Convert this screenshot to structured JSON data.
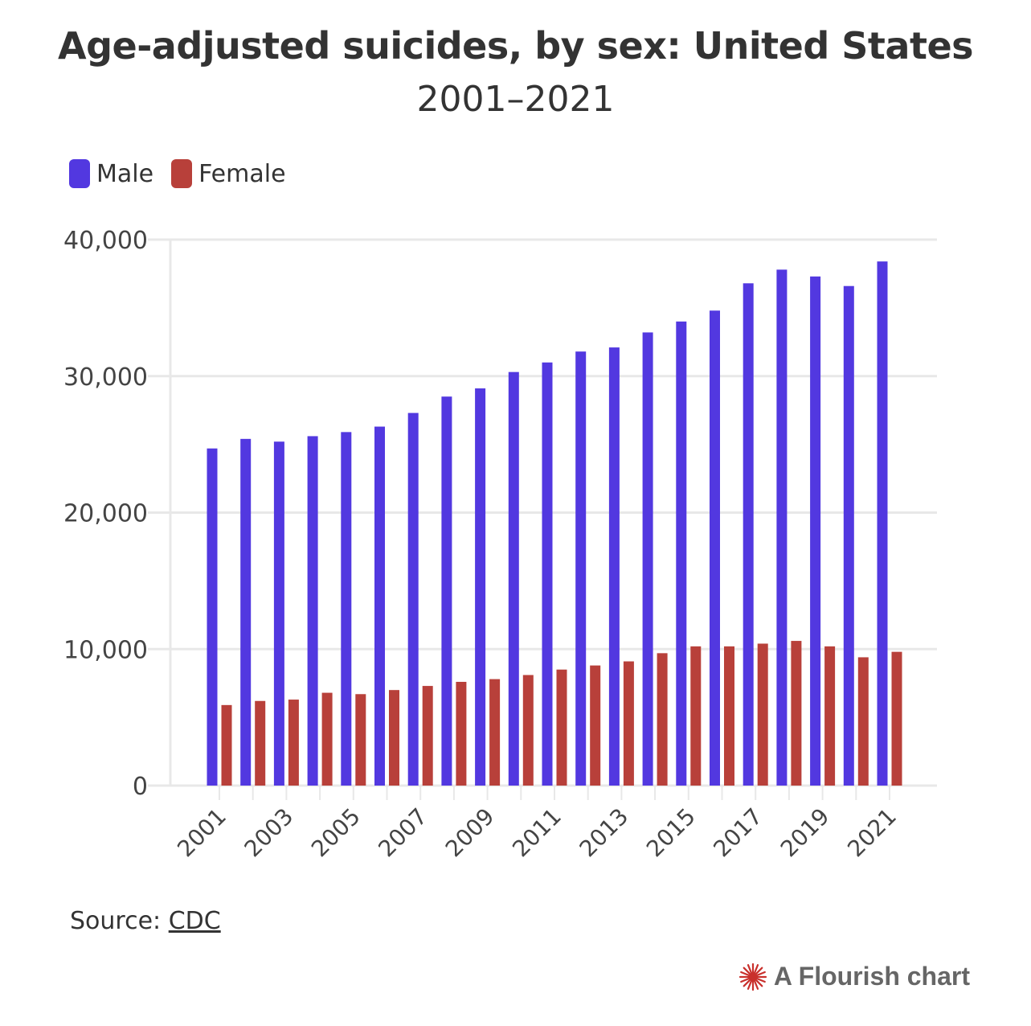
{
  "colors": {
    "male": "#5238e0",
    "female": "#b8403a",
    "grid": "#e8e8e8",
    "text": "#333333"
  },
  "chart_data": {
    "type": "bar",
    "title": "Age-adjusted suicides, by sex: United States",
    "subtitle": "2001–2021",
    "categories": [
      "2001",
      "2002",
      "2003",
      "2004",
      "2005",
      "2006",
      "2007",
      "2008",
      "2009",
      "2010",
      "2011",
      "2012",
      "2013",
      "2014",
      "2015",
      "2016",
      "2017",
      "2018",
      "2019",
      "2020",
      "2021"
    ],
    "x_tick_labels": [
      "2001",
      "2003",
      "2005",
      "2007",
      "2009",
      "2011",
      "2013",
      "2015",
      "2017",
      "2019",
      "2021"
    ],
    "y_tick_labels": [
      "0",
      "10,000",
      "20,000",
      "30,000",
      "40,000"
    ],
    "y_ticks": [
      0,
      10000,
      20000,
      30000,
      40000
    ],
    "ylim": [
      0,
      40000
    ],
    "legend_position": "top-left",
    "grid": true,
    "series": [
      {
        "name": "Male",
        "color": "#5238e0",
        "values": [
          24700,
          25400,
          25200,
          25600,
          25900,
          26300,
          27300,
          28500,
          29100,
          30300,
          31000,
          31800,
          32100,
          33200,
          34000,
          34800,
          36800,
          37800,
          37300,
          36600,
          38400
        ]
      },
      {
        "name": "Female",
        "color": "#b8403a",
        "values": [
          5900,
          6200,
          6300,
          6800,
          6700,
          7000,
          7300,
          7600,
          7800,
          8100,
          8500,
          8800,
          9100,
          9700,
          10200,
          10200,
          10400,
          10600,
          10200,
          9400,
          9800
        ]
      }
    ]
  },
  "source": {
    "label": "Source:",
    "link_text": "CDC"
  },
  "credit": {
    "text": "A Flourish chart",
    "icon": "flourish-logo-icon"
  }
}
